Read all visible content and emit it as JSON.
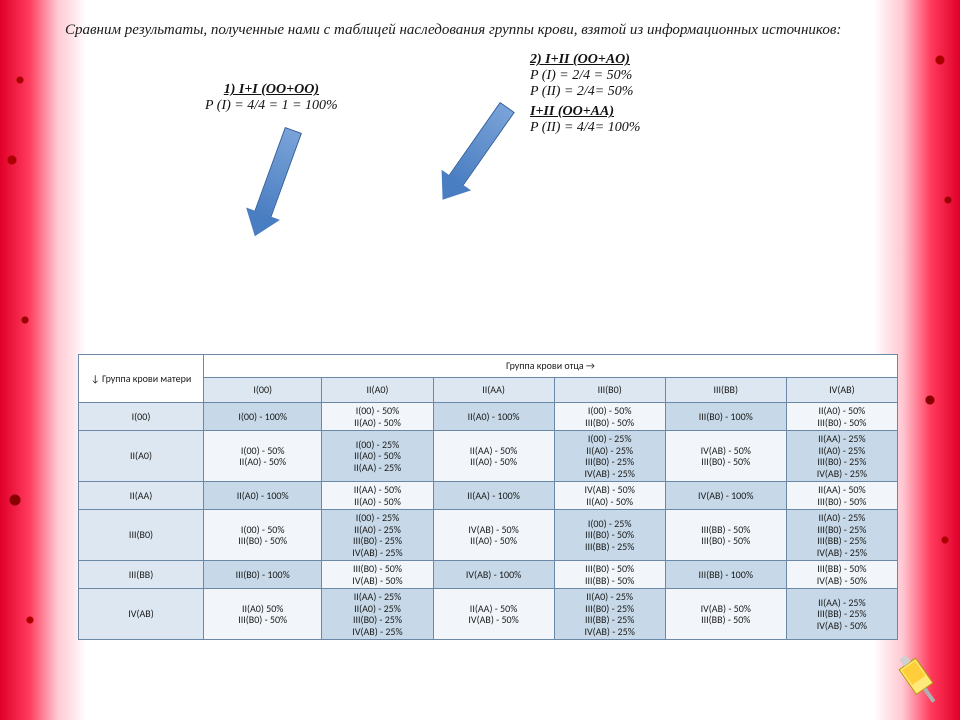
{
  "intro": "Сравним результаты, полученные нами с таблицей наследования группы крови, взятой из информационных источников:",
  "callout1": {
    "head": "1) I+I (OO+OO)",
    "p1": "P (I) = 4/4 = 1 = 100%"
  },
  "callout2": {
    "head": "2) I+II (OO+AO)",
    "p1": "P (I) = 2/4 = 50%",
    "p2": "P (II) = 2/4= 50%",
    "head2": "I+II (OO+AA)",
    "p3": "P (II) = 4/4= 100%"
  },
  "table": {
    "topHeader": "Группа крови отца →",
    "rowHeaderTitle": "↓ Группа крови матери",
    "cols": [
      "I(00)",
      "II(A0)",
      "II(AA)",
      "III(B0)",
      "III(BB)",
      "IV(AB)"
    ],
    "rows": [
      "I(00)",
      "II(A0)",
      "II(AA)",
      "III(B0)",
      "III(BB)",
      "IV(AB)"
    ],
    "cells": [
      [
        [
          "I(00) - 100%"
        ],
        [
          "I(00) - 50%",
          "II(A0) - 50%"
        ],
        [
          "II(A0) - 100%"
        ],
        [
          "I(00) - 50%",
          "III(B0) - 50%"
        ],
        [
          "III(B0) - 100%"
        ],
        [
          "II(A0) - 50%",
          "III(B0) - 50%"
        ]
      ],
      [
        [
          "I(00) - 50%",
          "II(A0) - 50%"
        ],
        [
          "I(00) - 25%",
          "II(A0) - 50%",
          "II(AA) - 25%"
        ],
        [
          "II(AA) - 50%",
          "II(A0) - 50%"
        ],
        [
          "I(00) - 25%",
          "II(A0) - 25%",
          "III(B0) - 25%",
          "IV(AB) - 25%"
        ],
        [
          "IV(AB) - 50%",
          "III(B0) - 50%"
        ],
        [
          "II(AA) - 25%",
          "II(A0) - 25%",
          "III(B0) - 25%",
          "IV(AB) - 25%"
        ]
      ],
      [
        [
          "II(A0) - 100%"
        ],
        [
          "II(AA) - 50%",
          "II(A0) - 50%"
        ],
        [
          "II(AA) - 100%"
        ],
        [
          "IV(AB) - 50%",
          "II(A0) - 50%"
        ],
        [
          "IV(AB) - 100%"
        ],
        [
          "II(AA) - 50%",
          "III(B0) - 50%"
        ]
      ],
      [
        [
          "I(00) - 50%",
          "III(B0) - 50%"
        ],
        [
          "I(00) - 25%",
          "II(A0) - 25%",
          "III(B0) - 25%",
          "IV(AB) - 25%"
        ],
        [
          "IV(AB) - 50%",
          "II(A0) - 50%"
        ],
        [
          "I(00) - 25%",
          "III(B0) - 50%",
          "III(BB) - 25%"
        ],
        [
          "III(BB) - 50%",
          "III(B0) - 50%"
        ],
        [
          "II(A0) - 25%",
          "III(B0) - 25%",
          "III(BB) - 25%",
          "IV(AB) - 25%"
        ]
      ],
      [
        [
          "III(B0) - 100%"
        ],
        [
          "III(B0) - 50%",
          "IV(AB) - 50%"
        ],
        [
          "IV(AB) - 100%"
        ],
        [
          "III(B0) - 50%",
          "III(BB) - 50%"
        ],
        [
          "III(BB) - 100%"
        ],
        [
          "III(BB) - 50%",
          "IV(AB) - 50%"
        ]
      ],
      [
        [
          "II(A0)   50%",
          "III(B0) - 50%"
        ],
        [
          "II(AA) - 25%",
          "II(A0) - 25%",
          "III(B0) - 25%",
          "IV(AB) - 25%"
        ],
        [
          "II(AA) - 50%",
          "IV(AB) - 50%"
        ],
        [
          "II(A0) - 25%",
          "III(B0) - 25%",
          "III(BB) - 25%",
          "IV(AB) - 25%"
        ],
        [
          "IV(AB) - 50%",
          "III(BB) - 50%"
        ],
        [
          "II(AA) - 25%",
          "III(BB) - 25%",
          "IV(AB) - 50%"
        ]
      ]
    ],
    "altShade": [
      [
        0,
        1,
        0,
        1,
        0,
        1
      ],
      [
        1,
        0,
        1,
        0,
        1,
        0
      ],
      [
        0,
        1,
        0,
        1,
        0,
        1
      ],
      [
        1,
        0,
        1,
        0,
        1,
        0
      ],
      [
        0,
        1,
        0,
        1,
        0,
        1
      ],
      [
        1,
        0,
        1,
        0,
        1,
        0
      ]
    ]
  },
  "colors": {
    "arrow": "#4a7ec2",
    "cell": "#c7d9e8",
    "cell_lt": "#f2f6fa",
    "header": "#dde7f1",
    "border": "#6b89a6"
  }
}
